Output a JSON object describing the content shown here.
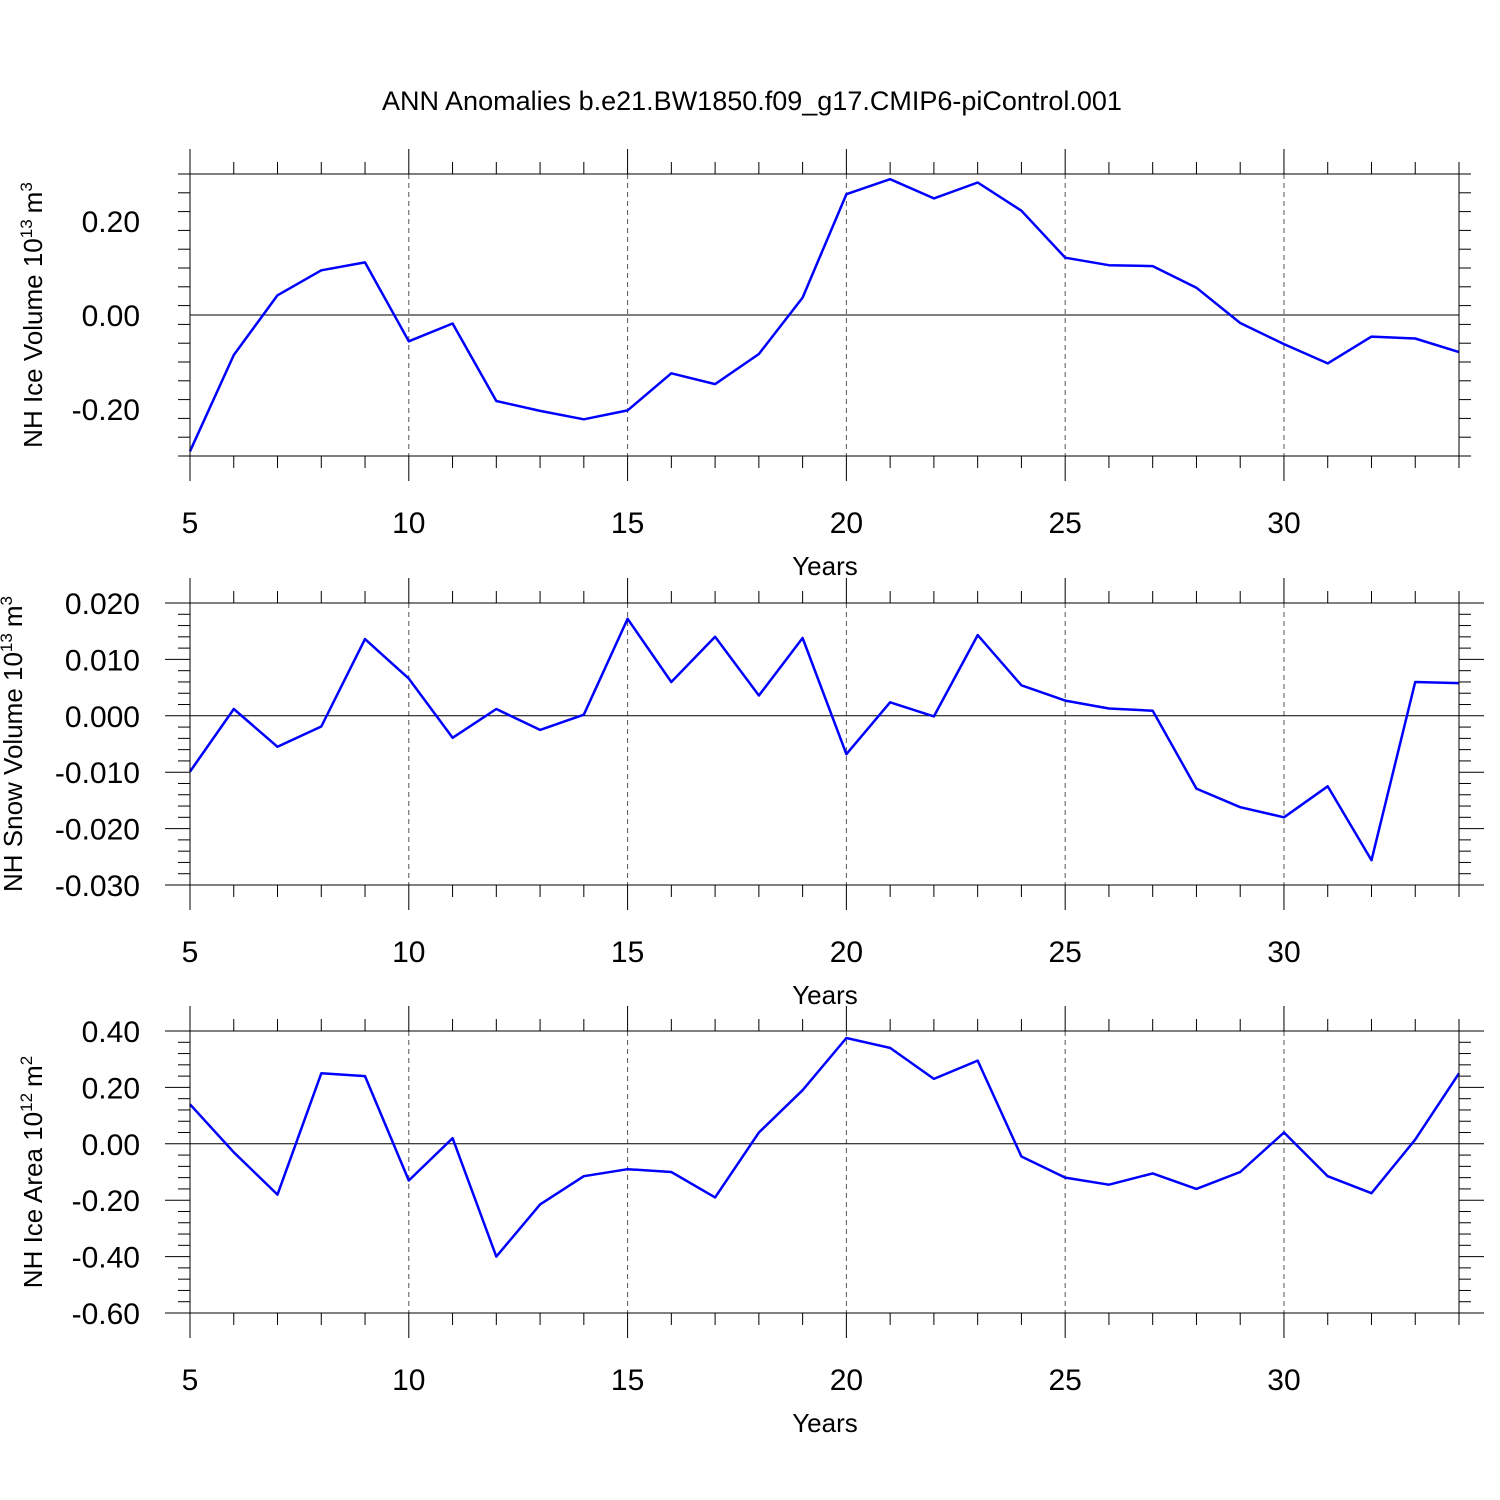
{
  "figure": {
    "title": "ANN Anomalies b.e21.BW1850.f09_g17.CMIP6-piControl.001"
  },
  "chart_data": [
    {
      "type": "line",
      "ylabel": "NH Ice Volume 10",
      "ylabel_exp": "13",
      "ylabel_unit": "m",
      "ylabel_unit_exp": "3",
      "xlabel": "Years",
      "xlim": [
        5,
        34
      ],
      "ylim": [
        -0.3,
        0.3
      ],
      "xticks": [
        5,
        10,
        15,
        20,
        25,
        30
      ],
      "xtick_labels": [
        "5",
        "10",
        "15",
        "20",
        "25",
        "30"
      ],
      "yticks": [
        -0.2,
        0.0,
        0.2
      ],
      "ytick_labels": [
        "-0.20",
        "0.00",
        "0.20"
      ],
      "grid": "dashed vertical at x ticks",
      "x": [
        5,
        6,
        7,
        8,
        9,
        10,
        11,
        12,
        13,
        14,
        15,
        16,
        17,
        18,
        19,
        20,
        21,
        22,
        23,
        24,
        25,
        26,
        27,
        28,
        29,
        30,
        31,
        32,
        33,
        34
      ],
      "series": [
        {
          "color": "#0000ff",
          "values": [
            -0.29,
            -0.085,
            0.042,
            0.095,
            0.112,
            -0.056,
            -0.018,
            -0.183,
            -0.204,
            -0.222,
            -0.203,
            -0.124,
            -0.147,
            -0.083,
            0.037,
            0.257,
            0.289,
            0.248,
            0.282,
            0.222,
            0.122,
            0.106,
            0.104,
            0.058,
            -0.017,
            -0.062,
            -0.103,
            -0.046,
            -0.05,
            -0.079
          ]
        }
      ]
    },
    {
      "type": "line",
      "ylabel": "NH Snow Volume 10",
      "ylabel_exp": "13",
      "ylabel_unit": "m",
      "ylabel_unit_exp": "3",
      "xlabel": "Years",
      "xlim": [
        5,
        34
      ],
      "ylim": [
        -0.03,
        0.02
      ],
      "xticks": [
        5,
        10,
        15,
        20,
        25,
        30
      ],
      "xtick_labels": [
        "5",
        "10",
        "15",
        "20",
        "25",
        "30"
      ],
      "yticks": [
        -0.03,
        -0.02,
        -0.01,
        0.0,
        0.01,
        0.02
      ],
      "ytick_labels": [
        "-0.030",
        "-0.020",
        "-0.010",
        "0.000",
        "0.010",
        "0.020"
      ],
      "grid": "dashed vertical at x ticks",
      "x": [
        5,
        6,
        7,
        8,
        9,
        10,
        11,
        12,
        13,
        14,
        15,
        16,
        17,
        18,
        19,
        20,
        21,
        22,
        23,
        24,
        25,
        26,
        27,
        28,
        29,
        30,
        31,
        32,
        33,
        34
      ],
      "series": [
        {
          "color": "#0000ff",
          "values": [
            -0.0099,
            0.0012,
            -0.0055,
            -0.0019,
            0.0136,
            0.0066,
            -0.0039,
            0.0012,
            -0.0025,
            0.0002,
            0.0172,
            0.006,
            0.014,
            0.0036,
            0.0138,
            -0.0068,
            0.0024,
            -0.0001,
            0.0143,
            0.0054,
            0.0027,
            0.0013,
            0.0009,
            -0.0129,
            -0.0162,
            -0.018,
            -0.0125,
            -0.0256,
            0.006,
            0.0058
          ]
        }
      ]
    },
    {
      "type": "line",
      "ylabel": "NH Ice Area 10",
      "ylabel_exp": "12",
      "ylabel_unit": "m",
      "ylabel_unit_exp": "2",
      "xlabel": "Years",
      "xlim": [
        5,
        34
      ],
      "ylim": [
        -0.6,
        0.4
      ],
      "xticks": [
        5,
        10,
        15,
        20,
        25,
        30
      ],
      "xtick_labels": [
        "5",
        "10",
        "15",
        "20",
        "25",
        "30"
      ],
      "yticks": [
        -0.6,
        -0.4,
        -0.2,
        0.0,
        0.2,
        0.4
      ],
      "ytick_labels": [
        "-0.60",
        "-0.40",
        "-0.20",
        "0.00",
        "0.20",
        "0.40"
      ],
      "grid": "dashed vertical at x ticks",
      "x": [
        5,
        6,
        7,
        8,
        9,
        10,
        11,
        12,
        13,
        14,
        15,
        16,
        17,
        18,
        19,
        20,
        21,
        22,
        23,
        24,
        25,
        26,
        27,
        28,
        29,
        30,
        31,
        32,
        33,
        34
      ],
      "series": [
        {
          "color": "#0000ff",
          "values": [
            0.14,
            -0.03,
            -0.18,
            0.25,
            0.24,
            -0.13,
            0.02,
            -0.4,
            -0.215,
            -0.115,
            -0.09,
            -0.1,
            -0.19,
            0.04,
            0.19,
            0.375,
            0.34,
            0.23,
            0.295,
            -0.045,
            -0.12,
            -0.145,
            -0.105,
            -0.16,
            -0.1,
            0.04,
            -0.115,
            -0.175,
            0.015,
            0.25
          ]
        }
      ]
    }
  ]
}
